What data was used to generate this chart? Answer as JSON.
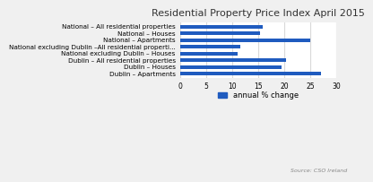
{
  "title": "Residential Property Price Index April 2015",
  "categories": [
    "Dublin – Apartments",
    "Dublin – Houses",
    "Dublin – All residential properties",
    "National excluding Dublin – Houses",
    "National excluding Dublin –All residential properti...",
    "National – Apartments",
    "National – Houses",
    "National – All residential properties"
  ],
  "values": [
    27.0,
    19.5,
    20.3,
    11.0,
    11.5,
    25.0,
    15.4,
    15.8
  ],
  "bar_color": "#1f5bbf",
  "xlim": [
    0,
    30
  ],
  "xticks": [
    0,
    5,
    10,
    15,
    20,
    25,
    30
  ],
  "legend_label": "annual % change",
  "source_text": "Source: CSO Ireland",
  "background_color": "#f0f0f0",
  "plot_bg_color": "#ffffff",
  "grid_color": "#d9d9d9",
  "title_fontsize": 8,
  "label_fontsize": 5.2,
  "tick_fontsize": 5.5,
  "legend_fontsize": 6,
  "source_fontsize": 4.5
}
